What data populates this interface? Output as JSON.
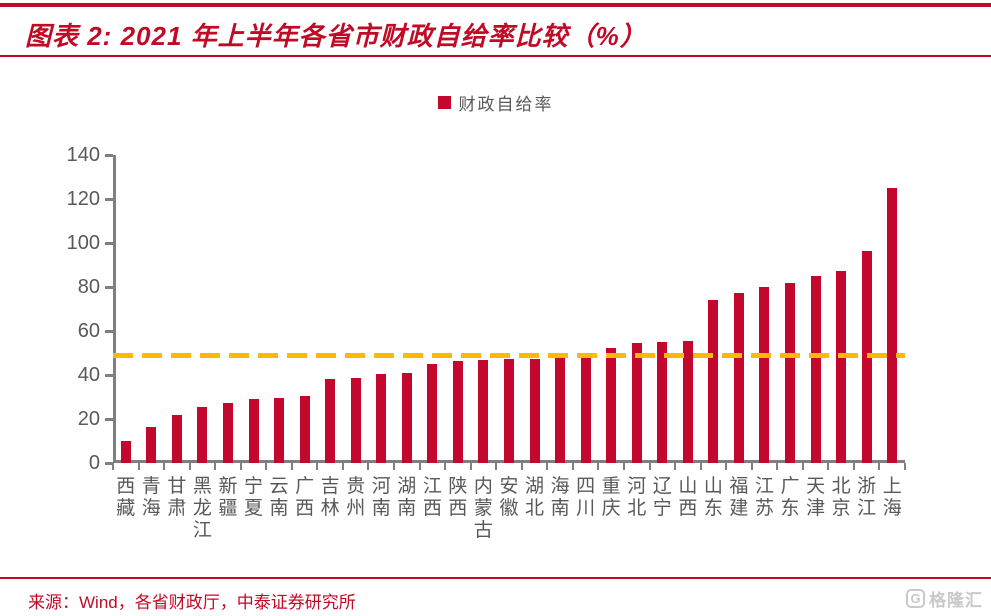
{
  "header": {
    "title": "图表 2: 2021 年上半年各省市财政自给率比较（%）"
  },
  "legend": {
    "label": "财政自给率"
  },
  "chart_data": {
    "type": "bar",
    "title": "2021 年上半年各省市财政自给率比较（%）",
    "series_name": "财政自给率",
    "categories": [
      "西藏",
      "青海",
      "甘肃",
      "黑龙江",
      "新疆",
      "宁夏",
      "云南",
      "广西",
      "吉林",
      "贵州",
      "河南",
      "湖南",
      "江西",
      "陕西",
      "内蒙古",
      "安徽",
      "湖北",
      "海南",
      "四川",
      "重庆",
      "河北",
      "辽宁",
      "山西",
      "山东",
      "福建",
      "江苏",
      "广东",
      "天津",
      "北京",
      "浙江",
      "上海"
    ],
    "values": [
      10,
      16.5,
      22,
      25.5,
      27.5,
      29,
      29.5,
      30.5,
      38,
      38.5,
      40.5,
      41,
      45,
      46.5,
      47,
      47.5,
      47.5,
      49,
      50,
      52.5,
      54.5,
      55,
      55.5,
      74,
      77.5,
      80,
      82,
      85,
      87.5,
      96.5,
      125
    ],
    "ylim": [
      0,
      140
    ],
    "yticks": [
      0,
      20,
      40,
      60,
      80,
      100,
      120,
      140
    ],
    "reference_line": {
      "value": 49,
      "style": "dashed",
      "color": "#FFB900"
    },
    "grid": false,
    "legend_position": "top-center",
    "xlabel": "",
    "ylabel": ""
  },
  "colors": {
    "accent_red": "#C00A26",
    "bar_red": "#C4082D",
    "dash_orange": "#FFB900",
    "axis_gray": "#7f7f7f",
    "tick_text_gray": "#595959",
    "watermark_gray": "#c9c9c9"
  },
  "footer": {
    "source": "来源：Wind，各省财政厅，中泰证券研究所"
  },
  "watermark": {
    "logo_letter": "G",
    "text": "格隆汇"
  }
}
